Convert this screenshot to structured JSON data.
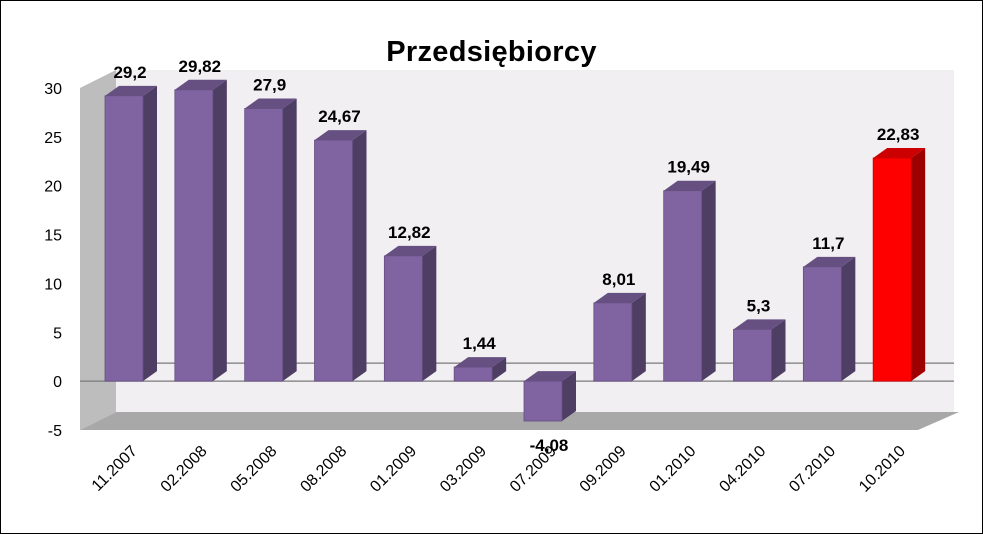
{
  "chart_data": {
    "type": "bar",
    "title": "Przedsiębiorcy",
    "xlabel": "",
    "ylabel": "",
    "ylim": [
      -5,
      30
    ],
    "yticks": [
      "30",
      "25",
      "20",
      "15",
      "10",
      "5",
      "0",
      "-5"
    ],
    "grid": false,
    "categories": [
      "11.2007",
      "02.2008",
      "05.2008",
      "08.2008",
      "01.2009",
      "03.2009",
      "07.2009",
      "09.2009",
      "01.2010",
      "04.2010",
      "07.2010",
      "10.2010"
    ],
    "values": [
      29.2,
      29.82,
      27.9,
      24.67,
      12.82,
      1.44,
      -4.08,
      8.01,
      19.49,
      5.3,
      11.7,
      22.83
    ],
    "value_labels": [
      "29,2",
      "29,82",
      "27,9",
      "24,67",
      "12,82",
      "1,44",
      "-4,08",
      "8,01",
      "19,49",
      "5,3",
      "11,7",
      "22,83"
    ],
    "colors": {
      "bar": "#8064a2",
      "highlight": "#ff0000",
      "highlight_index": 11
    }
  }
}
